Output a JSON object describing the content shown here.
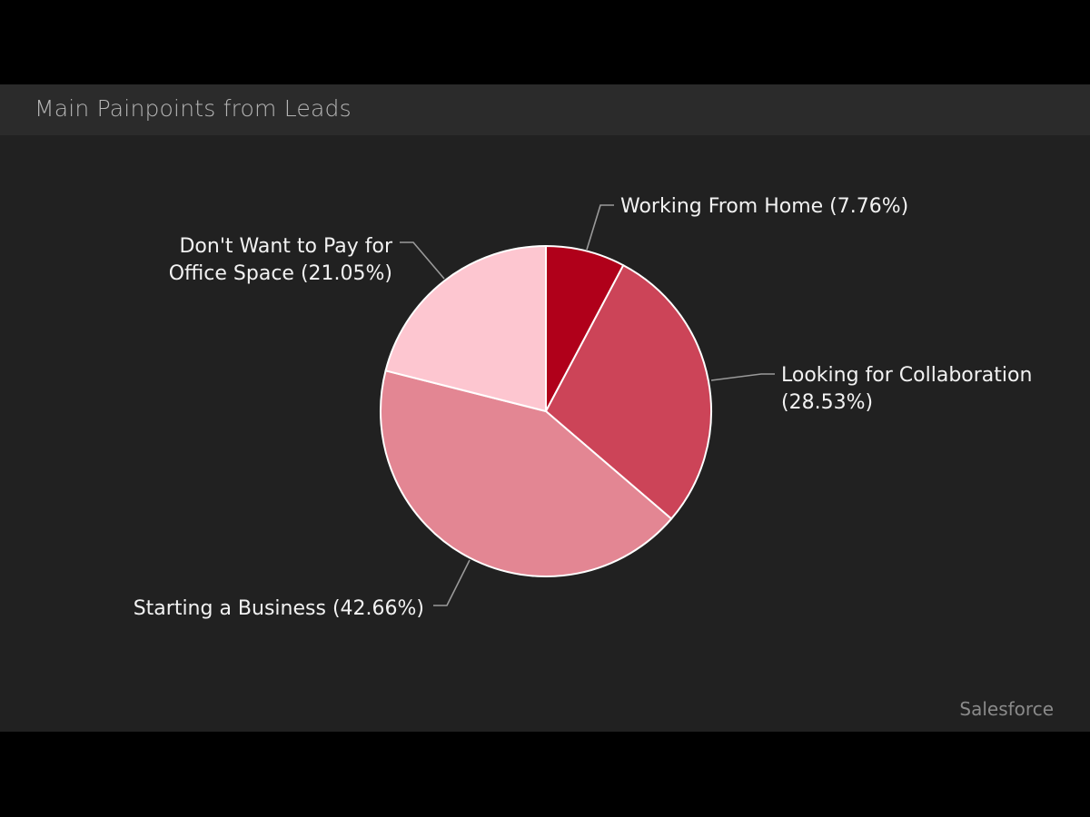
{
  "header": {
    "title": "Main Painpoints from Leads"
  },
  "footer": {
    "source": "Salesforce"
  },
  "colors": {
    "background": "#212121",
    "header_bg": "#2b2b2b",
    "slice_stroke": "#ffffff",
    "leader_line": "#9a9a9a"
  },
  "chart_data": {
    "type": "pie",
    "title": "Main Painpoints from Leads",
    "start_angle_deg": 0,
    "direction": "clockwise",
    "legend": "none (direct labels with leader lines)",
    "slices": [
      {
        "label": "Working From Home",
        "value": 7.76,
        "display": "Working From Home (7.76%)",
        "color": "#b0001a"
      },
      {
        "label": "Looking for Collaboration",
        "value": 28.53,
        "display_lines": [
          "Looking for Collaboration",
          "(28.53%)"
        ],
        "color": "#cc4458"
      },
      {
        "label": "Starting a Business",
        "value": 42.66,
        "display": "Starting a Business (42.66%)",
        "color": "#e38693"
      },
      {
        "label": "Don't Want to Pay for Office Space",
        "value": 21.05,
        "display_lines": [
          "Don't Want to Pay for",
          "Office Space (21.05%)"
        ],
        "color": "#fdc6d0"
      }
    ]
  },
  "labels": {
    "wfh": "Working From Home (7.76%)",
    "collab_1": "Looking for Collaboration",
    "collab_2": "(28.53%)",
    "business": "Starting a Business (42.66%)",
    "office_1": "Don't Want to Pay for",
    "office_2": "Office Space (21.05%)"
  }
}
